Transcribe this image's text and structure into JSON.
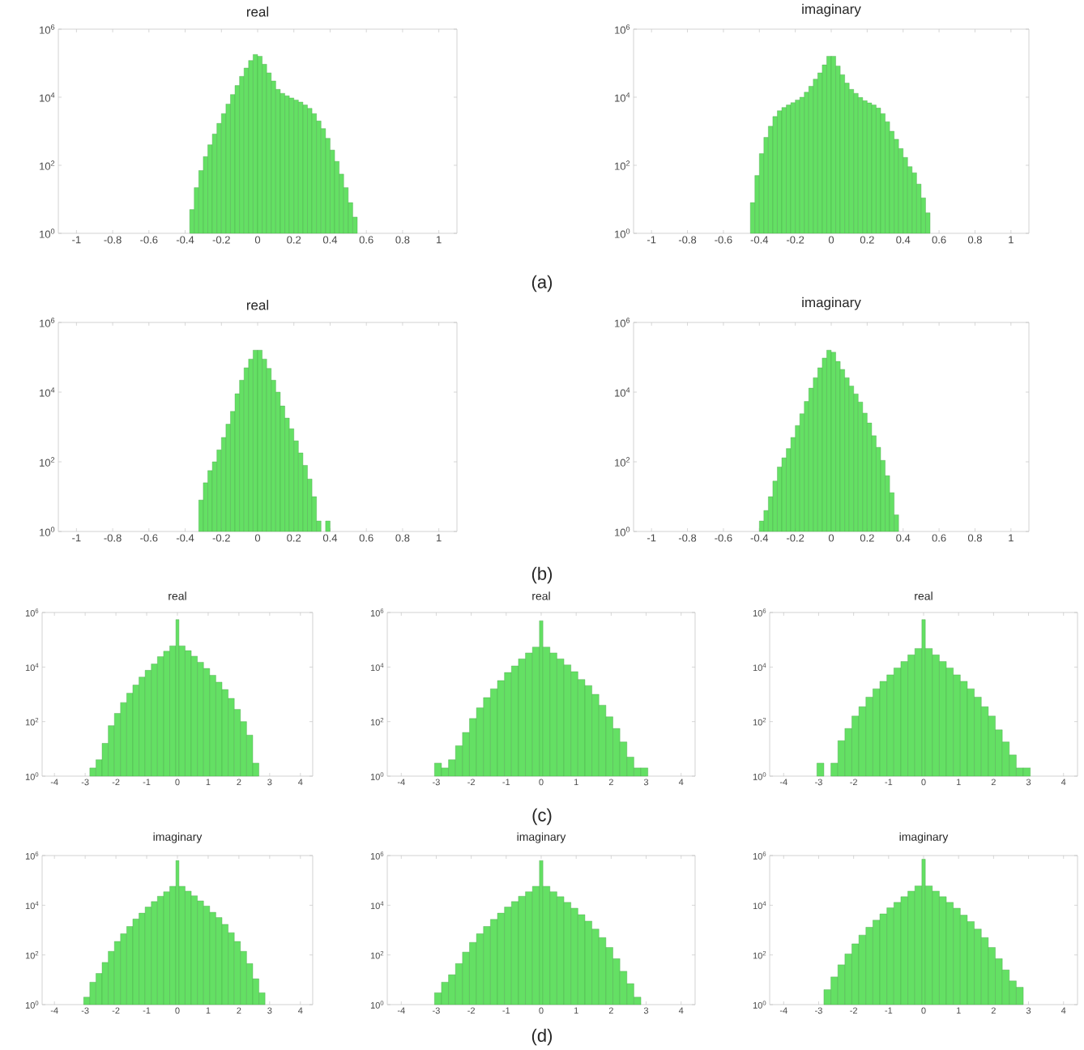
{
  "chart_data": [
    {
      "type": "histogram",
      "title": "real",
      "color": "#64e064",
      "log": "y",
      "xlim": [
        -1.1,
        1.1
      ],
      "xticks": [
        -1,
        -0.8,
        -0.6,
        -0.4,
        -0.2,
        0,
        0.2,
        0.4,
        0.6,
        0.8,
        1
      ],
      "ylim": [
        1,
        1000000
      ],
      "yticks": [
        {
          "value": 1,
          "label": "10$^{0}$"
        },
        {
          "value": 100,
          "label": "10$^{2}$"
        },
        {
          "value": 10000,
          "label": "10$^{4}$"
        },
        {
          "value": 1000000,
          "label": "10$^{6}$"
        }
      ],
      "annotations": [
        "(a)"
      ],
      "bins": [
        -0.375,
        -0.35,
        -0.325,
        -0.3,
        -0.275,
        -0.25,
        -0.225,
        -0.2,
        -0.175,
        -0.15,
        -0.125,
        -0.1,
        -0.075,
        -0.05,
        -0.025,
        0,
        0.025,
        0.05,
        0.075,
        0.1,
        0.125,
        0.15,
        0.175,
        0.2,
        0.225,
        0.25,
        0.275,
        0.3,
        0.325,
        0.35,
        0.375,
        0.4,
        0.425,
        0.45,
        0.475,
        0.5,
        0.525,
        0.55
      ],
      "values": [
        5,
        22,
        70,
        180,
        400,
        830,
        1700,
        3300,
        6300,
        12000,
        22000,
        41000,
        72000,
        120000,
        180000,
        160000,
        93000,
        52000,
        30000,
        17000,
        13000,
        11000,
        9500,
        8300,
        7200,
        5900,
        4700,
        3300,
        2000,
        1200,
        620,
        280,
        130,
        55,
        22,
        8,
        3
      ]
    },
    {
      "type": "histogram",
      "title": "imaginary",
      "color": "#64e064",
      "log": "y",
      "xlim": [
        -1.1,
        1.1
      ],
      "xticks": [
        -1,
        -0.8,
        -0.6,
        -0.4,
        -0.2,
        0,
        0.2,
        0.4,
        0.6,
        0.8,
        1
      ],
      "ylim": [
        1,
        1000000
      ],
      "yticks": [
        {
          "value": 1,
          "label": "10$^{0}$"
        },
        {
          "value": 100,
          "label": "10$^{2}$"
        },
        {
          "value": 10000,
          "label": "10$^{4}$"
        },
        {
          "value": 1000000,
          "label": "10$^{6}$"
        }
      ],
      "bins": [
        -0.45,
        -0.425,
        -0.4,
        -0.375,
        -0.35,
        -0.325,
        -0.3,
        -0.275,
        -0.25,
        -0.225,
        -0.2,
        -0.175,
        -0.15,
        -0.125,
        -0.1,
        -0.075,
        -0.05,
        -0.025,
        0,
        0.025,
        0.05,
        0.075,
        0.1,
        0.125,
        0.15,
        0.175,
        0.2,
        0.225,
        0.25,
        0.275,
        0.3,
        0.325,
        0.35,
        0.375,
        0.4,
        0.425,
        0.45,
        0.475,
        0.5,
        0.525,
        0.55
      ],
      "values": [
        8,
        50,
        220,
        660,
        1400,
        2700,
        4000,
        5000,
        5900,
        6900,
        8300,
        10000,
        14000,
        21000,
        34000,
        52000,
        89000,
        160000,
        160000,
        83000,
        46000,
        26000,
        17000,
        13000,
        9800,
        7900,
        6800,
        5900,
        4800,
        3300,
        1900,
        1000,
        580,
        310,
        170,
        91,
        60,
        28,
        11,
        4
      ]
    },
    {
      "type": "histogram",
      "title": "real",
      "color": "#64e064",
      "log": "y",
      "xlim": [
        -1.1,
        1.1
      ],
      "xticks": [
        -1,
        -0.8,
        -0.6,
        -0.4,
        -0.2,
        0,
        0.2,
        0.4,
        0.6,
        0.8,
        1
      ],
      "ylim": [
        1,
        1000000
      ],
      "yticks": [
        {
          "value": 1,
          "label": "10$^{0}$"
        },
        {
          "value": 100,
          "label": "10$^{2}$"
        },
        {
          "value": 10000,
          "label": "10$^{4}$"
        },
        {
          "value": 1000000,
          "label": "10$^{6}$"
        }
      ],
      "annotations": [
        "(b)"
      ],
      "bins": [
        -0.325,
        -0.3,
        -0.275,
        -0.25,
        -0.225,
        -0.2,
        -0.175,
        -0.15,
        -0.125,
        -0.1,
        -0.075,
        -0.05,
        -0.025,
        0,
        0.025,
        0.05,
        0.075,
        0.1,
        0.125,
        0.15,
        0.175,
        0.2,
        0.225,
        0.25,
        0.275,
        0.3,
        0.325,
        0.35,
        0.375,
        0.4
      ],
      "values": [
        8,
        25,
        56,
        100,
        220,
        500,
        1200,
        2800,
        9000,
        22000,
        50000,
        89000,
        160000,
        160000,
        89000,
        48000,
        22000,
        10000,
        4000,
        1800,
        890,
        400,
        180,
        79,
        32,
        10,
        2,
        null,
        2
      ]
    },
    {
      "type": "histogram",
      "title": "imaginary",
      "color": "#64e064",
      "log": "y",
      "xlim": [
        -1.1,
        1.1
      ],
      "xticks": [
        -1,
        -0.8,
        -0.6,
        -0.4,
        -0.2,
        0,
        0.2,
        0.4,
        0.6,
        0.8,
        1
      ],
      "ylim": [
        1,
        1000000
      ],
      "yticks": [
        {
          "value": 1,
          "label": "10$^{0}$"
        },
        {
          "value": 100,
          "label": "10$^{2}$"
        },
        {
          "value": 10000,
          "label": "10$^{4}$"
        },
        {
          "value": 1000000,
          "label": "10$^{6}$"
        }
      ],
      "bins": [
        -0.4,
        -0.375,
        -0.35,
        -0.325,
        -0.3,
        -0.275,
        -0.25,
        -0.225,
        -0.2,
        -0.175,
        -0.15,
        -0.125,
        -0.1,
        -0.075,
        -0.05,
        -0.025,
        0,
        0.025,
        0.05,
        0.075,
        0.1,
        0.125,
        0.15,
        0.175,
        0.2,
        0.225,
        0.25,
        0.275,
        0.3,
        0.325,
        0.35,
        0.375
      ],
      "values": [
        2,
        4,
        10,
        28,
        71,
        130,
        240,
        500,
        1100,
        2400,
        5400,
        13000,
        26000,
        50000,
        95000,
        160000,
        140000,
        76000,
        45000,
        26000,
        15000,
        8900,
        5200,
        2500,
        1300,
        560,
        260,
        110,
        40,
        13,
        3
      ]
    },
    {
      "type": "histogram",
      "title": "real",
      "color": "#64e064",
      "log": "y",
      "xlim": [
        -4.4,
        4.4
      ],
      "xticks": [
        -4,
        -3,
        -2,
        -1,
        0,
        1,
        2,
        3,
        4
      ],
      "ylim": [
        1,
        1000000
      ],
      "yticks": [
        {
          "value": 1,
          "label": "10$^{0}$"
        },
        {
          "value": 100,
          "label": "10$^{2}$"
        },
        {
          "value": 10000,
          "label": "10$^{4}$"
        },
        {
          "value": 1000000,
          "label": "10$^{6}$"
        }
      ],
      "bins": [
        -2.85,
        -2.65,
        -2.45,
        -2.25,
        -2.05,
        -1.85,
        -1.65,
        -1.45,
        -1.25,
        -1.05,
        -0.85,
        -0.65,
        -0.45,
        -0.25,
        -0.05,
        0.05,
        0.25,
        0.45,
        0.65,
        0.85,
        1.05,
        1.25,
        1.45,
        1.65,
        1.85,
        2.05,
        2.25,
        2.45,
        2.65
      ],
      "values": [
        2,
        4,
        16,
        71,
        200,
        500,
        1100,
        2200,
        4300,
        7600,
        13000,
        24000,
        38000,
        60000,
        550000,
        60000,
        40000,
        25000,
        15000,
        8900,
        5000,
        2800,
        1500,
        710,
        280,
        100,
        32,
        3
      ]
    },
    {
      "type": "histogram",
      "title": "real",
      "color": "#64e064",
      "log": "y",
      "xlim": [
        -4.4,
        4.4
      ],
      "xticks": [
        -4,
        -3,
        -2,
        -1,
        0,
        1,
        2,
        3,
        4
      ],
      "ylim": [
        1,
        1000000
      ],
      "yticks": [
        {
          "value": 1,
          "label": "10$^{0}$"
        },
        {
          "value": 100,
          "label": "10$^{2}$"
        },
        {
          "value": 10000,
          "label": "10$^{4}$"
        },
        {
          "value": 1000000,
          "label": "10$^{6}$"
        }
      ],
      "annotations": [
        "(c)"
      ],
      "bins": [
        -3.05,
        -2.85,
        -2.65,
        -2.45,
        -2.25,
        -2.05,
        -1.85,
        -1.65,
        -1.45,
        -1.25,
        -1.05,
        -0.85,
        -0.65,
        -0.45,
        -0.25,
        -0.05,
        0.05,
        0.25,
        0.45,
        0.65,
        0.85,
        1.05,
        1.25,
        1.45,
        1.65,
        1.85,
        2.05,
        2.25,
        2.45,
        2.65,
        2.85,
        3.05
      ],
      "values": [
        3,
        2,
        4,
        13,
        40,
        130,
        320,
        760,
        1600,
        3200,
        6300,
        11000,
        20000,
        33000,
        54000,
        500000,
        54000,
        33000,
        20000,
        12000,
        6800,
        3500,
        2100,
        1000,
        400,
        150,
        56,
        18,
        5,
        2,
        2
      ]
    },
    {
      "type": "histogram",
      "title": "real",
      "color": "#64e064",
      "log": "y",
      "xlim": [
        -4.4,
        4.4
      ],
      "xticks": [
        -4,
        -3,
        -2,
        -1,
        0,
        1,
        2,
        3,
        4
      ],
      "ylim": [
        1,
        1000000
      ],
      "yticks": [
        {
          "value": 1,
          "label": "10$^{0}$"
        },
        {
          "value": 100,
          "label": "10$^{2}$"
        },
        {
          "value": 10000,
          "label": "10$^{4}$"
        },
        {
          "value": 1000000,
          "label": "10$^{6}$"
        }
      ],
      "bins": [
        -3.05,
        -2.85,
        -2.65,
        -2.45,
        -2.25,
        -2.05,
        -1.85,
        -1.65,
        -1.45,
        -1.25,
        -1.05,
        -0.85,
        -0.65,
        -0.45,
        -0.25,
        -0.05,
        0.05,
        0.25,
        0.45,
        0.65,
        0.85,
        1.05,
        1.25,
        1.45,
        1.65,
        1.85,
        2.05,
        2.25,
        2.45,
        2.65,
        2.85,
        3.05
      ],
      "values": [
        3,
        null,
        3,
        20,
        56,
        160,
        350,
        790,
        1600,
        3000,
        5200,
        9300,
        16000,
        28000,
        48000,
        550000,
        48000,
        28000,
        16000,
        9300,
        5200,
        3000,
        1600,
        790,
        350,
        160,
        50,
        18,
        6,
        2,
        2
      ]
    },
    {
      "type": "histogram",
      "title": "imaginary",
      "color": "#64e064",
      "log": "y",
      "xlim": [
        -4.4,
        4.4
      ],
      "xticks": [
        -4,
        -3,
        -2,
        -1,
        0,
        1,
        2,
        3,
        4
      ],
      "ylim": [
        1,
        1000000
      ],
      "yticks": [
        {
          "value": 1,
          "label": "10$^{0}$"
        },
        {
          "value": 100,
          "label": "10$^{2}$"
        },
        {
          "value": 10000,
          "label": "10$^{4}$"
        },
        {
          "value": 1000000,
          "label": "10$^{6}$"
        }
      ],
      "bins": [
        -3.05,
        -2.85,
        -2.65,
        -2.45,
        -2.25,
        -2.05,
        -1.85,
        -1.65,
        -1.45,
        -1.25,
        -1.05,
        -0.85,
        -0.65,
        -0.45,
        -0.25,
        -0.05,
        0.05,
        0.25,
        0.45,
        0.65,
        0.85,
        1.05,
        1.25,
        1.45,
        1.65,
        1.85,
        2.05,
        2.25,
        2.45,
        2.65,
        2.85
      ],
      "values": [
        2,
        8,
        18,
        50,
        140,
        350,
        710,
        1400,
        2800,
        4800,
        8500,
        14000,
        23000,
        35000,
        58000,
        630000,
        58000,
        37000,
        24000,
        15000,
        9300,
        5200,
        3200,
        1700,
        790,
        350,
        140,
        45,
        11,
        3
      ]
    },
    {
      "type": "histogram",
      "title": "imaginary",
      "color": "#64e064",
      "log": "y",
      "xlim": [
        -4.4,
        4.4
      ],
      "xticks": [
        -4,
        -3,
        -2,
        -1,
        0,
        1,
        2,
        3,
        4
      ],
      "ylim": [
        1,
        1000000
      ],
      "yticks": [
        {
          "value": 1,
          "label": "10$^{0}$"
        },
        {
          "value": 100,
          "label": "10$^{2}$"
        },
        {
          "value": 10000,
          "label": "10$^{4}$"
        },
        {
          "value": 1000000,
          "label": "10$^{6}$"
        }
      ],
      "annotations": [
        "(d)"
      ],
      "bins": [
        -3.05,
        -2.85,
        -2.65,
        -2.45,
        -2.25,
        -2.05,
        -1.85,
        -1.65,
        -1.45,
        -1.25,
        -1.05,
        -0.85,
        -0.65,
        -0.45,
        -0.25,
        -0.05,
        0.05,
        0.25,
        0.45,
        0.65,
        0.85,
        1.05,
        1.25,
        1.45,
        1.65,
        1.85,
        2.05,
        2.25,
        2.45,
        2.65,
        2.85
      ],
      "values": [
        3,
        8,
        16,
        45,
        130,
        320,
        710,
        1400,
        2700,
        4800,
        8500,
        14000,
        23000,
        35000,
        58000,
        630000,
        58000,
        35000,
        22000,
        13000,
        7600,
        4200,
        2300,
        1100,
        500,
        200,
        71,
        22,
        7,
        2
      ]
    },
    {
      "type": "histogram",
      "title": "imaginary",
      "color": "#64e064",
      "log": "y",
      "xlim": [
        -4.4,
        4.4
      ],
      "xticks": [
        -4,
        -3,
        -2,
        -1,
        0,
        1,
        2,
        3,
        4
      ],
      "ylim": [
        1,
        1000000
      ],
      "yticks": [
        {
          "value": 1,
          "label": "10$^{0}$"
        },
        {
          "value": 100,
          "label": "10$^{2}$"
        },
        {
          "value": 10000,
          "label": "10$^{4}$"
        },
        {
          "value": 1000000,
          "label": "10$^{6}$"
        }
      ],
      "bins": [
        -2.85,
        -2.65,
        -2.45,
        -2.25,
        -2.05,
        -1.85,
        -1.65,
        -1.45,
        -1.25,
        -1.05,
        -0.85,
        -0.65,
        -0.45,
        -0.25,
        -0.05,
        0.05,
        0.25,
        0.45,
        0.65,
        0.85,
        1.05,
        1.25,
        1.45,
        1.65,
        1.85,
        2.05,
        2.25,
        2.45,
        2.65,
        2.85
      ],
      "values": [
        4,
        13,
        40,
        110,
        280,
        630,
        1300,
        2500,
        4500,
        7900,
        13000,
        22000,
        37000,
        60000,
        710000,
        60000,
        37000,
        22000,
        13000,
        7600,
        4000,
        2200,
        1100,
        500,
        200,
        71,
        25,
        9,
        5
      ]
    }
  ]
}
